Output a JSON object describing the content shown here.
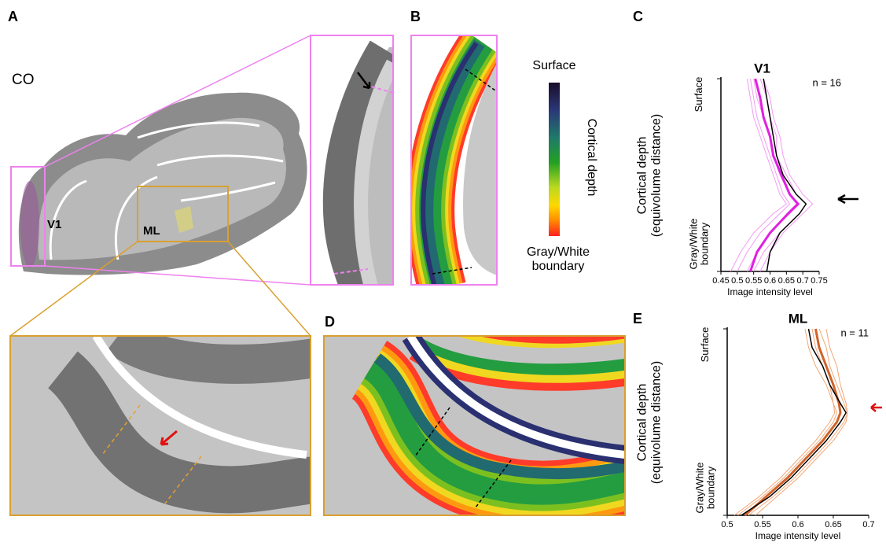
{
  "figure": {
    "labels": [
      "A",
      "B",
      "D"
    ],
    "co": "CO",
    "v1": "V1",
    "ml": "ML",
    "colorbar": {
      "top": "Surface",
      "middle": "Cortical depth",
      "bottom": "Gray/White boundary"
    }
  },
  "chart_data": [
    {
      "type": "line",
      "label": "C",
      "title": "V1",
      "annotation": "n = 16",
      "xlabel": "Image intensity level",
      "ylabel": "Cortical depth (equivolume distance)",
      "xlim": [
        0.45,
        0.75
      ],
      "xticks": [
        0.45,
        0.5,
        0.55,
        0.6,
        0.65,
        0.7,
        0.75
      ],
      "ylim": [
        0,
        1
      ],
      "yticks": [
        {
          "value": 0,
          "label": "Surface"
        },
        {
          "value": 1,
          "label": "Gray/White boundary"
        }
      ],
      "depths": [
        0,
        0.1,
        0.2,
        0.3,
        0.4,
        0.5,
        0.6,
        0.65,
        0.7,
        0.8,
        0.9,
        1
      ],
      "series": [
        {
          "color": "#f49af4",
          "linewidth": 1,
          "values": [
            0.55,
            0.56,
            0.58,
            0.6,
            0.61,
            0.63,
            0.66,
            0.69,
            0.66,
            0.6,
            0.56,
            0.53
          ]
        },
        {
          "color": "#f49af4",
          "linewidth": 1,
          "values": [
            0.58,
            0.6,
            0.61,
            0.63,
            0.64,
            0.66,
            0.7,
            0.73,
            0.7,
            0.64,
            0.6,
            0.57
          ]
        },
        {
          "color": "#f49af4",
          "linewidth": 1,
          "values": [
            0.54,
            0.55,
            0.56,
            0.58,
            0.6,
            0.62,
            0.64,
            0.66,
            0.63,
            0.57,
            0.53,
            0.5
          ]
        },
        {
          "color": "#f49af4",
          "linewidth": 1,
          "values": [
            0.57,
            0.59,
            0.6,
            0.62,
            0.62,
            0.65,
            0.68,
            0.71,
            0.69,
            0.63,
            0.58,
            0.55
          ]
        },
        {
          "color": "#f49af4",
          "linewidth": 1,
          "values": [
            0.53,
            0.54,
            0.55,
            0.57,
            0.59,
            0.61,
            0.63,
            0.65,
            0.61,
            0.55,
            0.51,
            0.48
          ]
        },
        {
          "color": "#e020e0",
          "linewidth": 3,
          "values": [
            0.555,
            0.57,
            0.58,
            0.6,
            0.61,
            0.635,
            0.66,
            0.685,
            0.655,
            0.6,
            0.56,
            0.54
          ]
        },
        {
          "color": "#000000",
          "linewidth": 1.5,
          "values": [
            0.58,
            0.59,
            0.6,
            0.61,
            0.62,
            0.64,
            0.68,
            0.71,
            0.69,
            0.63,
            0.6,
            0.59
          ]
        }
      ]
    },
    {
      "type": "line",
      "label": "E",
      "title": "ML",
      "annotation": "n = 11",
      "xlabel": "Image intensity level",
      "ylabel": "Cortical depth (equivolume distance)",
      "xlim": [
        0.5,
        0.7
      ],
      "xticks": [
        0.5,
        0.55,
        0.6,
        0.65,
        0.7
      ],
      "ylim": [
        0,
        1
      ],
      "yticks": [
        {
          "value": 0,
          "label": "Surface"
        },
        {
          "value": 1,
          "label": "Gray/White boundary"
        }
      ],
      "depths": [
        0,
        0.1,
        0.2,
        0.3,
        0.4,
        0.45,
        0.5,
        0.6,
        0.7,
        0.8,
        0.9,
        1
      ],
      "series": [
        {
          "color": "#f3a676",
          "linewidth": 1,
          "values": [
            0.63,
            0.64,
            0.645,
            0.655,
            0.665,
            0.67,
            0.665,
            0.645,
            0.62,
            0.595,
            0.565,
            0.53
          ]
        },
        {
          "color": "#f3a676",
          "linewidth": 1,
          "values": [
            0.62,
            0.625,
            0.635,
            0.645,
            0.65,
            0.652,
            0.645,
            0.625,
            0.6,
            0.575,
            0.545,
            0.51
          ]
        },
        {
          "color": "#f3a676",
          "linewidth": 1,
          "values": [
            0.64,
            0.645,
            0.655,
            0.66,
            0.668,
            0.67,
            0.668,
            0.65,
            0.625,
            0.6,
            0.57,
            0.54
          ]
        },
        {
          "color": "#f3a676",
          "linewidth": 1,
          "values": [
            0.61,
            0.615,
            0.625,
            0.64,
            0.65,
            0.655,
            0.65,
            0.63,
            0.605,
            0.58,
            0.55,
            0.515
          ]
        },
        {
          "color": "#d0632a",
          "linewidth": 3,
          "values": [
            0.625,
            0.63,
            0.64,
            0.65,
            0.658,
            0.66,
            0.655,
            0.635,
            0.61,
            0.585,
            0.555,
            0.525
          ]
        },
        {
          "color": "#000000",
          "linewidth": 1.5,
          "values": [
            0.615,
            0.62,
            0.635,
            0.645,
            0.66,
            0.668,
            0.66,
            0.64,
            0.615,
            0.59,
            0.56,
            0.52
          ]
        }
      ]
    }
  ]
}
